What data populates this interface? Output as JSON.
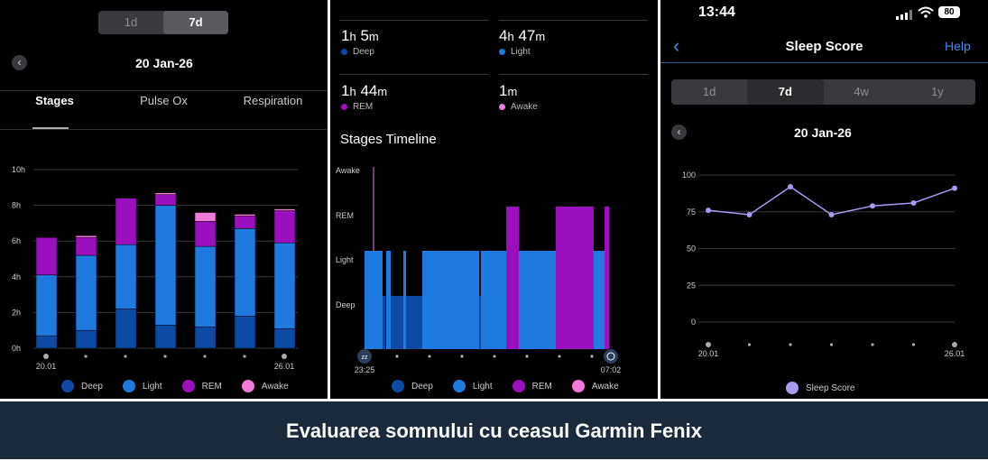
{
  "panel1": {
    "periods": [
      "1d",
      "7d"
    ],
    "active_period": "7d",
    "date": "20 Jan-26",
    "tabs": [
      "Stages",
      "Pulse Ox",
      "Respiration"
    ],
    "active_tab": "Stages",
    "chart_data": {
      "type": "bar",
      "stacked": true,
      "title": "",
      "ylabel": "",
      "ylim": [
        0,
        10
      ],
      "y_ticks": [
        "0h",
        "2h",
        "4h",
        "6h",
        "8h",
        "10h"
      ],
      "x_labels": [
        "20.01",
        "",
        "",
        "",
        "",
        "",
        "26.01"
      ],
      "series": [
        {
          "name": "Deep",
          "color": "#0d4aa5",
          "values": [
            0.7,
            1.0,
            2.2,
            1.3,
            1.2,
            1.8,
            1.1
          ]
        },
        {
          "name": "Light",
          "color": "#1f7ae0",
          "values": [
            3.4,
            4.2,
            3.6,
            6.7,
            4.5,
            4.9,
            4.8
          ]
        },
        {
          "name": "REM",
          "color": "#9b0fbf",
          "values": [
            2.1,
            1.0,
            2.6,
            0.6,
            1.4,
            0.7,
            1.8
          ]
        },
        {
          "name": "Awake",
          "color": "#f27ad8",
          "values": [
            0,
            0.1,
            0,
            0.1,
            0.5,
            0.1,
            0.1
          ]
        }
      ]
    },
    "legend": [
      "Deep",
      "Light",
      "REM",
      "Awake"
    ]
  },
  "panel2": {
    "stats": [
      {
        "hours": "1",
        "h_unit": "h",
        "minutes": "5",
        "m_unit": "m",
        "label": "Deep",
        "color": "#0d4aa5"
      },
      {
        "hours": "4",
        "h_unit": "h",
        "minutes": "47",
        "m_unit": "m",
        "label": "Light",
        "color": "#1f7ae0"
      },
      {
        "hours": "1",
        "h_unit": "h",
        "minutes": "44",
        "m_unit": "m",
        "label": "REM",
        "color": "#9b0fbf"
      },
      {
        "hours": "",
        "h_unit": "",
        "minutes": "1",
        "m_unit": "m",
        "label": "Awake",
        "color": "#f27ad8"
      }
    ],
    "timeline_title": "Stages Timeline",
    "stage_labels": [
      "Awake",
      "REM",
      "Light",
      "Deep"
    ],
    "start_time": "23:25",
    "end_time": "07:02",
    "sleep_icon": "zzz-icon",
    "wake_icon": "alarm-clock-icon",
    "legend": [
      "Deep",
      "Light",
      "REM",
      "Awake"
    ]
  },
  "panel3": {
    "status": {
      "time": "13:44",
      "battery": "80"
    },
    "title": "Sleep Score",
    "help": "Help",
    "periods": [
      "1d",
      "7d",
      "4w",
      "1y"
    ],
    "active_period": "7d",
    "date": "20 Jan-26",
    "chart_data": {
      "type": "line",
      "title": "",
      "ylim": [
        0,
        100
      ],
      "y_ticks": [
        "0",
        "25",
        "50",
        "75",
        "100"
      ],
      "x_labels": [
        "20.01",
        "",
        "",
        "",
        "",
        "",
        "26.01"
      ],
      "series": [
        {
          "name": "Sleep Score",
          "color": "#a99af0",
          "values": [
            76,
            73,
            92,
            73,
            79,
            81,
            91
          ]
        }
      ]
    }
  },
  "caption": "Evaluarea somnului cu ceasul Garmin Fenix",
  "colors": {
    "deep": "#0d4aa5",
    "light": "#1f7ae0",
    "rem": "#9b0fbf",
    "awake": "#f27ad8",
    "score": "#a99af0",
    "accent": "#3d8af7"
  }
}
